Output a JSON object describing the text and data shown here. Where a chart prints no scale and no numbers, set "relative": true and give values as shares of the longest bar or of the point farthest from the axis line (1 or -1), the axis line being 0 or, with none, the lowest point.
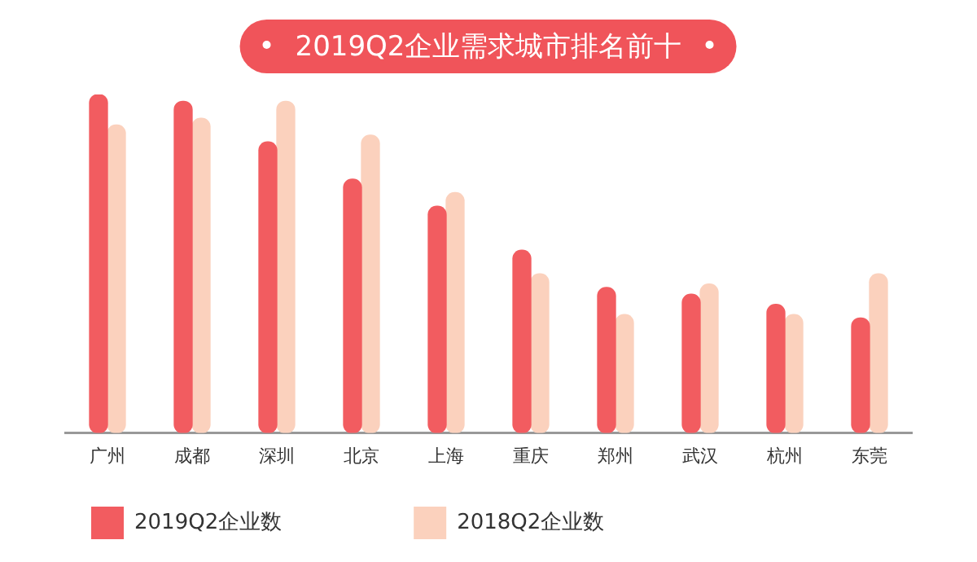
{
  "chart_data": {
    "type": "bar",
    "title": "2019Q2企业需求城市排名前十",
    "relative": true,
    "categories": [
      "广州",
      "成都",
      "深圳",
      "北京",
      "上海",
      "重庆",
      "郑州",
      "武汉",
      "杭州",
      "东莞"
    ],
    "series": [
      {
        "name": "2019Q2企业数",
        "color": "#f25c60",
        "values": [
          1,
          0.98,
          0.86,
          0.75,
          0.67,
          0.54,
          0.43,
          0.41,
          0.38,
          0.34
        ]
      },
      {
        "name": "2018Q2企业数",
        "color": "#fbd1bd",
        "values": [
          0.91,
          0.93,
          0.98,
          0.88,
          0.71,
          0.47,
          0.35,
          0.44,
          0.35,
          0.47
        ]
      }
    ],
    "legend": "bottom left"
  }
}
